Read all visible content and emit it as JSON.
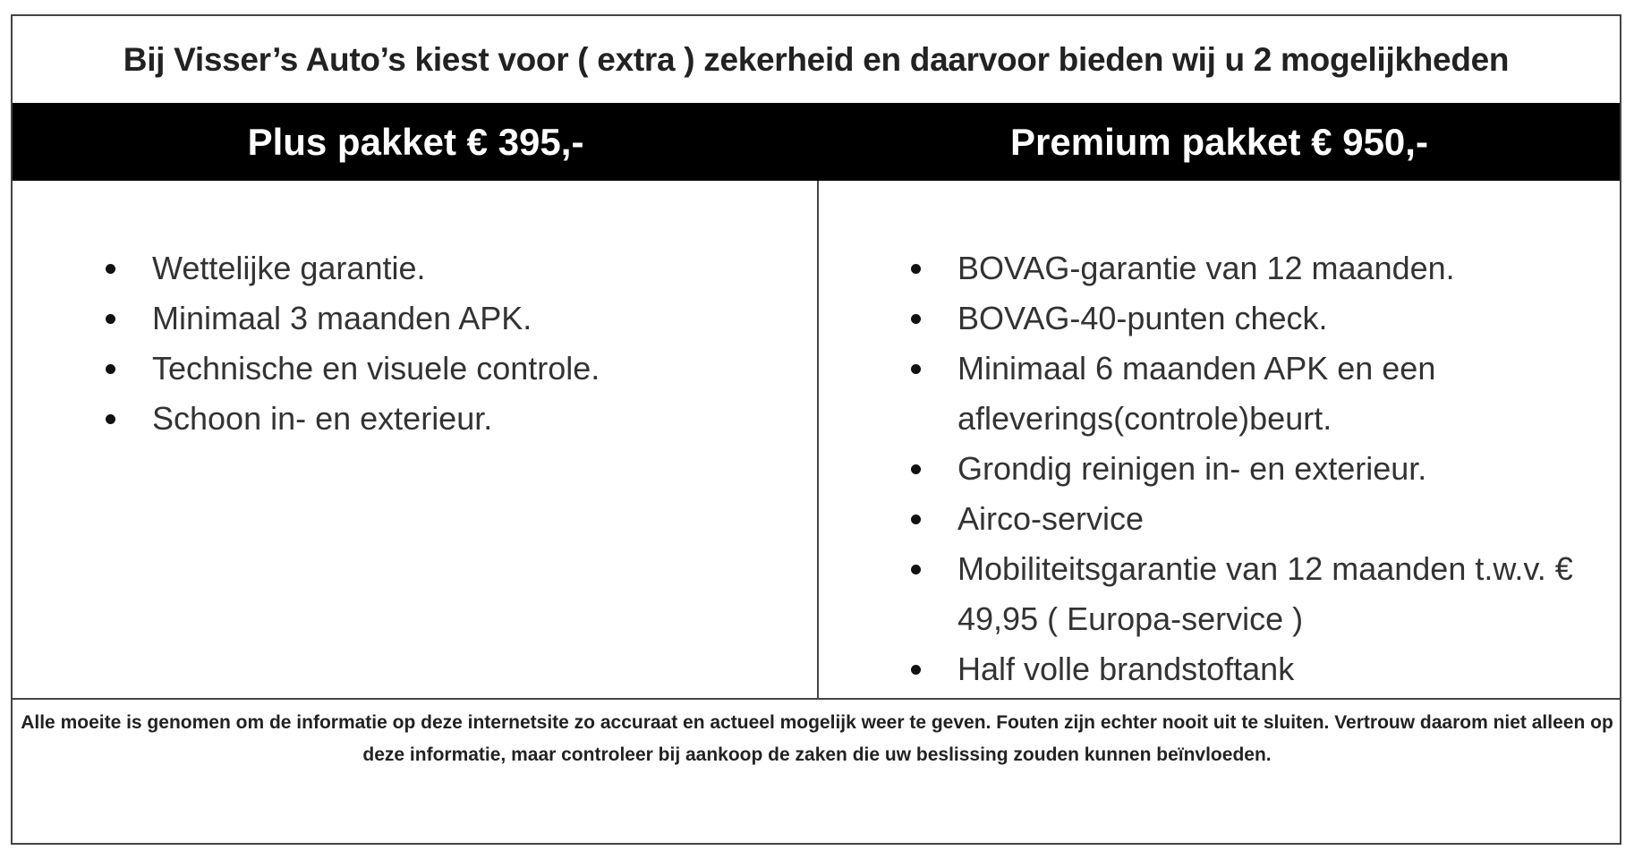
{
  "title": "Bij Visser’s Auto’s kiest voor ( extra ) zekerheid en daarvoor bieden wij u 2 mogelijkheden",
  "packages": [
    {
      "header": "Plus pakket  € 395,-",
      "items": [
        "Wettelijke garantie.",
        "Minimaal 3 maanden APK.",
        "Technische en visuele controle.",
        "Schoon in- en exterieur."
      ]
    },
    {
      "header": "Premium pakket € 950,-",
      "items": [
        "BOVAG-garantie van 12 maanden.",
        "BOVAG-40-punten check.",
        "Minimaal 6 maanden APK en een afleverings(controle)beurt.",
        "Grondig reinigen in- en exterieur.",
        "Airco-service",
        "Mobiliteitsgarantie van 12 maanden t.w.v. € 49,95 ( Europa-service )",
        "Half volle brandstoftank"
      ]
    }
  ],
  "disclaimer": "Alle moeite is genomen om de informatie op deze internetsite zo accuraat en actueel mogelijk weer te geven. Fouten zijn echter nooit uit te sluiten. Vertrouw daarom niet alleen op deze informatie, maar controleer bij aankoop de zaken die uw beslissing zouden kunnen beïnvloeden."
}
